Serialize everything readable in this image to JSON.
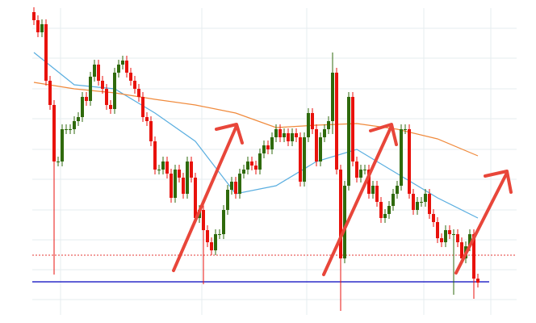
{
  "chart_data": {
    "type": "candlestick",
    "up_color": "#2f6a0c",
    "down_color": "#e8120c",
    "x": [
      0,
      1,
      2,
      3,
      4,
      5,
      6,
      7,
      8,
      9,
      10,
      11,
      12,
      13,
      14,
      15,
      16,
      17,
      18,
      19,
      20,
      21,
      22,
      23,
      24,
      25,
      26,
      27,
      28,
      29,
      30,
      31,
      32,
      33,
      34,
      35,
      36,
      37,
      38,
      39,
      40,
      41,
      42,
      43,
      44,
      45,
      46,
      47,
      48,
      49,
      50,
      51,
      52,
      53,
      54,
      55,
      56,
      57,
      58,
      59,
      60,
      61,
      62,
      63,
      64,
      65,
      66,
      67,
      68,
      69,
      70,
      71,
      72,
      73,
      74,
      75,
      76,
      77,
      78,
      79,
      80,
      81,
      82,
      83,
      84,
      85,
      86,
      87,
      88,
      89,
      90,
      91,
      92,
      93,
      94,
      95,
      96,
      97,
      98,
      99,
      100,
      101,
      102,
      103,
      104,
      105,
      106,
      107,
      108,
      109,
      110
    ],
    "open": [
      375,
      365,
      350,
      360,
      290,
      260,
      190,
      190,
      230,
      230,
      230,
      240,
      245,
      270,
      265,
      295,
      310,
      290,
      280,
      260,
      255,
      300,
      310,
      315,
      300,
      290,
      280,
      270,
      245,
      240,
      215,
      180,
      180,
      190,
      175,
      145,
      180,
      170,
      150,
      190,
      170,
      120,
      130,
      105,
      90,
      80,
      100,
      100,
      130,
      155,
      165,
      150,
      175,
      180,
      190,
      185,
      180,
      200,
      210,
      205,
      220,
      230,
      220,
      225,
      215,
      225,
      220,
      165,
      220,
      250,
      230,
      190,
      220,
      230,
      240,
      300,
      180,
      70,
      160,
      270,
      190,
      170,
      180,
      180,
      150,
      160,
      140,
      120,
      125,
      135,
      150,
      160,
      230,
      230,
      150,
      130,
      140,
      140,
      150,
      125,
      115,
      95,
      90,
      105,
      100,
      100,
      90,
      70,
      85,
      100,
      45
    ],
    "high": [
      381,
      371,
      366,
      366,
      296,
      266,
      196,
      236,
      236,
      236,
      246,
      251,
      276,
      276,
      301,
      316,
      316,
      296,
      286,
      266,
      306,
      316,
      321,
      321,
      306,
      296,
      286,
      276,
      251,
      246,
      221,
      186,
      196,
      196,
      181,
      186,
      186,
      176,
      196,
      196,
      176,
      136,
      136,
      111,
      96,
      106,
      106,
      136,
      161,
      171,
      171,
      181,
      186,
      196,
      196,
      191,
      206,
      216,
      216,
      226,
      236,
      236,
      231,
      231,
      231,
      231,
      226,
      226,
      256,
      256,
      236,
      226,
      236,
      246,
      325,
      306,
      186,
      166,
      276,
      276,
      196,
      186,
      186,
      186,
      166,
      166,
      146,
      131,
      141,
      156,
      166,
      236,
      236,
      236,
      156,
      146,
      146,
      156,
      156,
      131,
      121,
      101,
      111,
      111,
      106,
      106,
      96,
      91,
      106,
      106,
      51
    ],
    "low": [
      359,
      344,
      344,
      284,
      254,
      50,
      184,
      184,
      224,
      224,
      224,
      234,
      239,
      259,
      259,
      289,
      284,
      274,
      254,
      249,
      249,
      294,
      304,
      294,
      284,
      274,
      264,
      239,
      234,
      209,
      174,
      174,
      174,
      169,
      139,
      139,
      164,
      144,
      144,
      164,
      114,
      114,
      38,
      84,
      74,
      74,
      94,
      94,
      124,
      149,
      144,
      144,
      169,
      174,
      179,
      174,
      174,
      194,
      199,
      199,
      214,
      214,
      214,
      209,
      209,
      214,
      159,
      159,
      214,
      224,
      184,
      184,
      214,
      224,
      224,
      174,
      5,
      64,
      154,
      184,
      164,
      164,
      174,
      144,
      144,
      134,
      114,
      114,
      119,
      129,
      144,
      154,
      224,
      144,
      124,
      124,
      134,
      134,
      119,
      109,
      89,
      84,
      84,
      94,
      25,
      84,
      64,
      64,
      79,
      20,
      34
    ],
    "close": [
      365,
      350,
      360,
      290,
      260,
      190,
      190,
      230,
      230,
      230,
      240,
      245,
      270,
      265,
      295,
      310,
      290,
      280,
      260,
      255,
      300,
      310,
      315,
      300,
      290,
      280,
      270,
      245,
      240,
      215,
      180,
      180,
      190,
      175,
      145,
      180,
      170,
      150,
      190,
      170,
      120,
      130,
      105,
      90,
      80,
      100,
      100,
      130,
      155,
      165,
      150,
      175,
      180,
      190,
      185,
      180,
      200,
      210,
      205,
      220,
      230,
      220,
      225,
      215,
      225,
      220,
      165,
      220,
      250,
      230,
      190,
      220,
      230,
      240,
      300,
      180,
      70,
      160,
      270,
      190,
      170,
      180,
      180,
      150,
      160,
      140,
      120,
      125,
      135,
      150,
      160,
      230,
      230,
      150,
      130,
      140,
      140,
      150,
      125,
      115,
      95,
      90,
      105,
      100,
      100,
      90,
      70,
      85,
      100,
      45,
      40
    ],
    "lines": [
      {
        "color": "#5aaee0",
        "x": [
          0,
          10,
          20,
          30,
          40,
          50,
          60,
          70,
          80,
          90,
          100,
          110
        ],
        "values": [
          325,
          285,
          280,
          250,
          215,
          150,
          160,
          190,
          205,
          175,
          145,
          120
        ]
      },
      {
        "color": "#f08a3c",
        "x": [
          0,
          10,
          20,
          30,
          40,
          50,
          60,
          70,
          80,
          90,
          100,
          110
        ],
        "values": [
          288,
          280,
          275,
          267,
          260,
          250,
          232,
          235,
          237,
          230,
          218,
          197
        ]
      }
    ],
    "hlines": [
      {
        "value": 41,
        "color": "#2b2bc8",
        "style": "solid"
      },
      {
        "value": 74,
        "color": "#e53935",
        "style": "dotted"
      }
    ],
    "xlim": [
      -0.4,
      119.6
    ],
    "ylim": [
      0,
      380
    ],
    "xticks": [
      6.6,
      41.6,
      67.6,
      96.6,
      113.2
    ],
    "yticks": [
      19,
      56,
      93,
      130,
      168,
      205,
      243,
      280,
      318,
      355
    ],
    "grid": true
  }
}
